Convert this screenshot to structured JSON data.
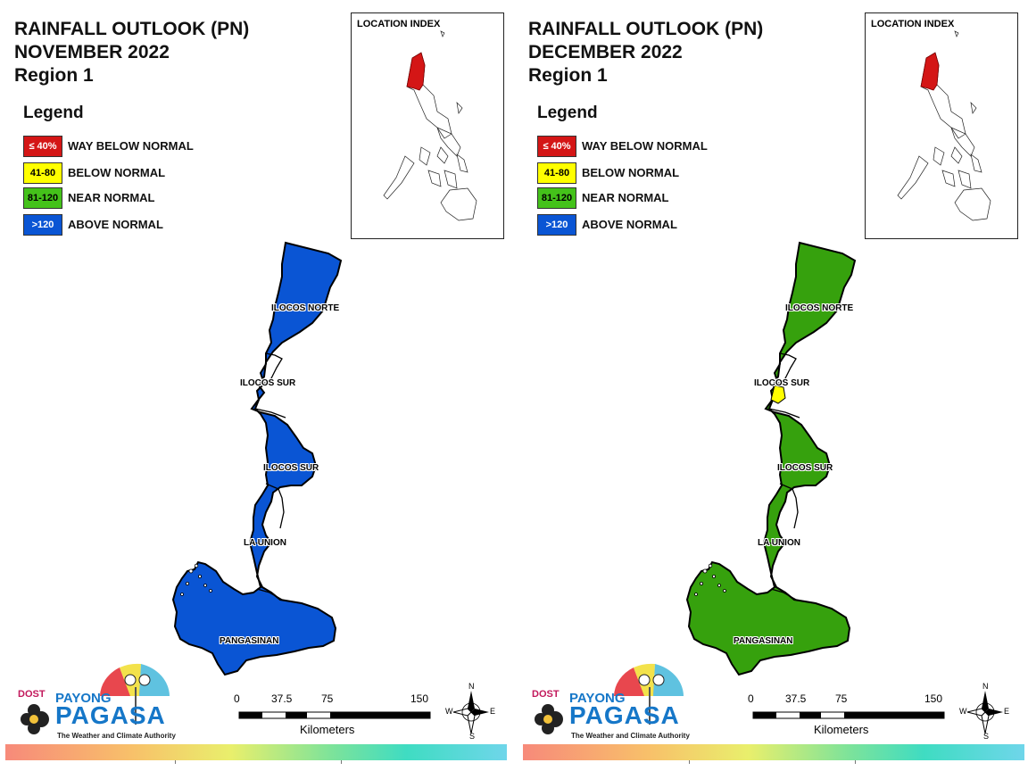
{
  "panels": [
    {
      "title_lines": [
        "RAINFALL OUTLOOK (PN)",
        "NOVEMBER 2022",
        "Region 1"
      ],
      "region_fill": "#0a55d4",
      "enclave": null
    },
    {
      "title_lines": [
        "RAINFALL OUTLOOK (PN)",
        "DECEMBER 2022",
        "Region 1"
      ],
      "region_fill": "#36a10d",
      "enclave": "#ffff00"
    }
  ],
  "legend": {
    "heading": "Legend",
    "items": [
      {
        "range": "≤ 40%",
        "label": "WAY BELOW NORMAL",
        "color": "#d41616",
        "text_color": "#ffffff"
      },
      {
        "range": "41-80",
        "label": "BELOW NORMAL",
        "color": "#ffff00",
        "text_color": "#000000"
      },
      {
        "range": "81-120",
        "label": "NEAR NORMAL",
        "color": "#44c21a",
        "text_color": "#000000"
      },
      {
        "range": ">120",
        "label": "ABOVE NORMAL",
        "color": "#0a55d4",
        "text_color": "#ffffff"
      }
    ]
  },
  "location_index": {
    "title": "LOCATION INDEX",
    "highlight_color": "#d41616"
  },
  "province_labels": [
    "ILOCOS NORTE",
    "ILOCOS SUR",
    "ILOCOS SUR",
    "LA UNION",
    "PANGASINAN"
  ],
  "scale": {
    "ticks": [
      "0",
      "37.5",
      "75",
      "150"
    ],
    "unit": "Kilometers"
  },
  "compass": {
    "n": "N",
    "s": "S",
    "e": "E",
    "w": "W"
  },
  "logo": {
    "dost": "DOST",
    "payong": "PAYONG",
    "pagasa": "PAGASA",
    "tagline": "The Weather and Climate Authority"
  }
}
